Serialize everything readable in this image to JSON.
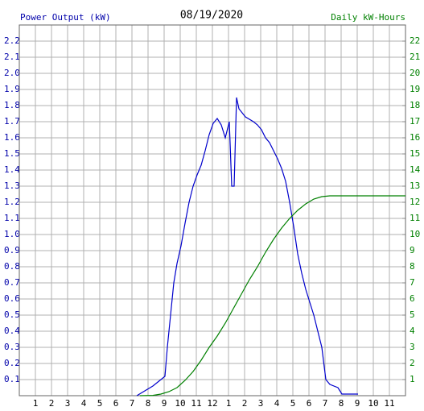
{
  "chart_data": {
    "type": "line",
    "title": "08/19/2020",
    "y_label": "Power Output (kW)",
    "y2_label": "Daily kW-Hours",
    "xlim": [
      0,
      24
    ],
    "xticks": [
      1,
      2,
      3,
      4,
      5,
      6,
      7,
      8,
      9,
      10,
      11,
      12,
      {
        "value": 13,
        "label": "1"
      },
      {
        "value": 14,
        "label": "2"
      },
      {
        "value": 15,
        "label": "3"
      },
      {
        "value": 16,
        "label": "4"
      },
      {
        "value": 17,
        "label": "5"
      },
      {
        "value": 18,
        "label": "6"
      },
      {
        "value": 19,
        "label": "7"
      },
      {
        "value": 20,
        "label": "8"
      },
      {
        "value": 21,
        "label": "9"
      },
      {
        "value": 22,
        "label": "10"
      },
      {
        "value": 23,
        "label": "11"
      }
    ],
    "ylim": [
      0,
      2.3
    ],
    "yticks": [
      0.1,
      0.2,
      0.3,
      0.4,
      0.5,
      0.6,
      0.7,
      0.8,
      0.9,
      {
        "value": 1,
        "label": "1.0"
      },
      1.1,
      1.2,
      1.3,
      1.4,
      1.5,
      1.6,
      1.7,
      1.8,
      1.9,
      {
        "value": 2,
        "label": "2.0"
      },
      2.1,
      2.2
    ],
    "y2lim": [
      0,
      23
    ],
    "y2ticks": [
      1,
      2,
      3,
      4,
      5,
      6,
      7,
      8,
      9,
      10,
      11,
      12,
      13,
      14,
      15,
      16,
      17,
      18,
      19,
      20,
      21,
      22
    ],
    "grid": true,
    "y_label_color": "#0000aa",
    "y2_label_color": "#008000",
    "series": [
      {
        "name": "Power Output",
        "color": "#0000cc",
        "x": [
          7.3,
          7.8,
          8.3,
          8.8,
          9.05,
          9.2,
          9.4,
          9.6,
          9.8,
          10.05,
          10.3,
          10.55,
          10.8,
          11.05,
          11.3,
          11.55,
          11.8,
          12.05,
          12.3,
          12.55,
          12.8,
          13.05,
          13.2,
          13.35,
          13.5,
          13.65,
          14.05,
          14.55,
          14.8,
          15.05,
          15.3,
          15.55,
          15.8,
          16.05,
          16.3,
          16.55,
          16.8,
          17.05,
          17.3,
          17.55,
          17.8,
          18.05,
          18.3,
          18.55,
          18.8,
          19.05,
          19.3,
          19.8,
          20.05,
          21.05
        ],
        "values": [
          0,
          0.03,
          0.06,
          0.1,
          0.12,
          0.3,
          0.5,
          0.7,
          0.82,
          0.93,
          1.07,
          1.2,
          1.3,
          1.37,
          1.43,
          1.52,
          1.62,
          1.69,
          1.72,
          1.68,
          1.6,
          1.7,
          1.3,
          1.3,
          1.85,
          1.78,
          1.73,
          1.7,
          1.68,
          1.65,
          1.6,
          1.57,
          1.52,
          1.47,
          1.41,
          1.33,
          1.2,
          1.05,
          0.88,
          0.76,
          0.66,
          0.58,
          0.5,
          0.4,
          0.3,
          0.1,
          0.07,
          0.05,
          0.01,
          0.01
        ]
      },
      {
        "name": "Daily kW-Hours",
        "color": "#008000",
        "axis": "y2",
        "x": [
          7.5,
          8.3,
          8.8,
          9.3,
          9.8,
          10.3,
          10.8,
          11.3,
          11.8,
          12.3,
          12.8,
          13.3,
          13.8,
          14.3,
          14.8,
          15.3,
          15.8,
          16.3,
          16.8,
          17.3,
          17.8,
          18.3,
          18.8,
          19.3,
          24
        ],
        "values": [
          0,
          0.02,
          0.1,
          0.25,
          0.5,
          0.95,
          1.5,
          2.2,
          3,
          3.7,
          4.5,
          5.4,
          6.3,
          7.2,
          8,
          8.9,
          9.7,
          10.4,
          11,
          11.5,
          11.9,
          12.2,
          12.35,
          12.4,
          12.4
        ]
      }
    ]
  }
}
